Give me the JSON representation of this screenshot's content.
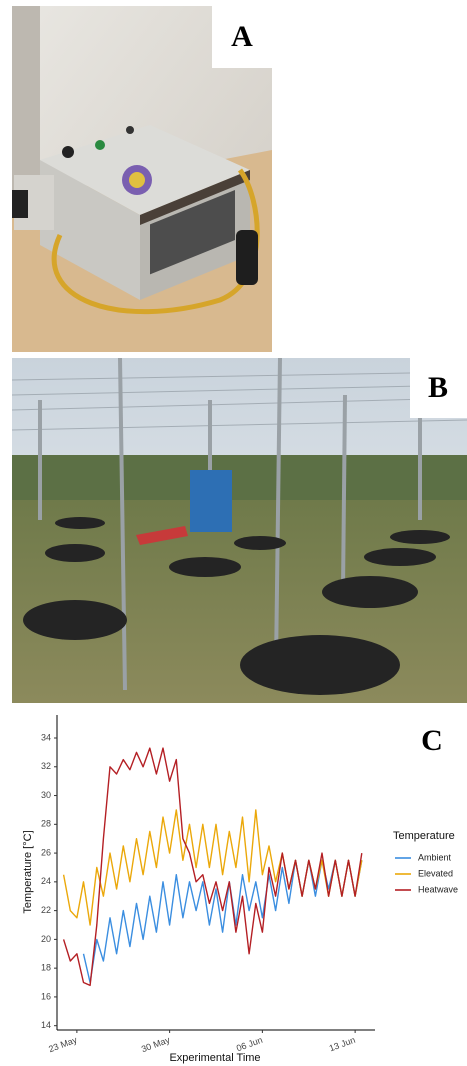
{
  "panels": {
    "a": {
      "label": "A"
    },
    "b": {
      "label": "B"
    }
  },
  "chart_data": {
    "type": "line",
    "panel_label": "C",
    "x_label": "Experimental Time",
    "y_label": "Temperature [°C]",
    "legend_title": "Temperature",
    "legend": "right",
    "x": [
      22,
      22.5,
      23,
      23.5,
      24,
      24.5,
      25,
      25.5,
      26,
      26.5,
      27,
      27.5,
      28,
      28.5,
      29,
      29.5,
      30,
      30.5,
      31,
      31.5,
      32,
      32.5,
      33,
      33.5,
      34,
      34.5,
      35,
      35.5,
      36,
      36.5,
      37,
      37.5,
      38,
      38.5,
      39,
      39.5,
      40,
      40.5,
      41,
      41.5,
      42,
      42.5,
      43,
      43.5,
      44,
      44.5
    ],
    "xlim": [
      21.5,
      45.5
    ],
    "xticks": [
      {
        "value": 23,
        "label": "23 May"
      },
      {
        "value": 30,
        "label": "30 May"
      },
      {
        "value": 37,
        "label": "06 Jun"
      },
      {
        "value": 44,
        "label": "13 Jun"
      }
    ],
    "ylim": [
      13.7,
      35.6
    ],
    "yticks": [
      14,
      16,
      18,
      20,
      22,
      24,
      26,
      28,
      30,
      32,
      34
    ],
    "series": [
      {
        "name": "Ambient",
        "color": "#3b8ee0",
        "values": [
          null,
          null,
          null,
          19,
          17,
          20,
          18.5,
          21.5,
          19,
          22,
          19.5,
          22.5,
          20,
          23,
          20.5,
          24,
          21,
          24.5,
          21.5,
          24,
          22,
          24,
          21,
          23.5,
          20.5,
          24,
          21,
          24.5,
          22,
          24,
          21.5,
          24.5,
          22,
          25,
          22.5,
          25.5,
          23,
          25.5,
          23,
          25.5,
          23.5,
          25.5,
          23,
          25.5,
          23,
          25.5
        ]
      },
      {
        "name": "Elevated",
        "color": "#eba80a",
        "values": [
          24.5,
          22,
          21.5,
          24,
          21,
          25,
          23,
          26,
          23.5,
          26.5,
          24,
          27,
          24.5,
          27.5,
          25,
          28.5,
          26,
          29,
          25.5,
          28,
          25,
          28,
          25,
          28,
          24.5,
          27.5,
          25,
          28.5,
          24,
          29,
          24.5,
          26.5,
          24,
          26,
          23.5,
          25.5,
          23,
          25.5,
          23.5,
          25.5,
          23,
          25.5,
          23,
          25.5,
          23,
          25.5
        ]
      },
      {
        "name": "Heatwave",
        "color": "#b41f24",
        "values": [
          20,
          18.5,
          19,
          17,
          16.8,
          21,
          27,
          32,
          31.5,
          32.5,
          31.8,
          33,
          32,
          33.3,
          31.5,
          33.3,
          31,
          32.5,
          27,
          26,
          24,
          24.5,
          22.5,
          24,
          22,
          24,
          20.5,
          23,
          19,
          22.5,
          20.5,
          25,
          23,
          26,
          23.5,
          25.5,
          23,
          25.5,
          23.5,
          26,
          23,
          25.5,
          23,
          25.5,
          23,
          26
        ]
      }
    ]
  }
}
